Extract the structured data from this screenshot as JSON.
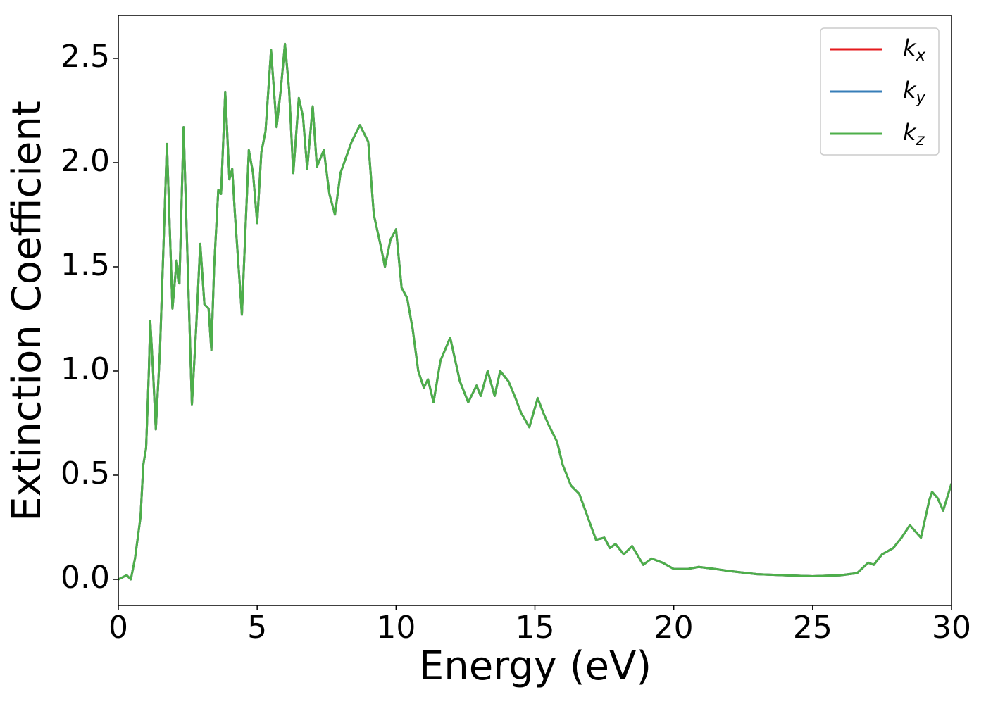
{
  "chart_data": {
    "type": "line",
    "xlabel": "Energy (eV)",
    "ylabel": "Extinction Coefficient",
    "xlim": [
      0,
      30
    ],
    "ylim": [
      -0.125,
      2.706
    ],
    "xticks": [
      0,
      5,
      10,
      15,
      20,
      25,
      30
    ],
    "yticks": [
      {
        "value": 0,
        "label": "0.0"
      },
      0.5,
      {
        "value": 1,
        "label": "1.0"
      },
      1.5,
      {
        "value": 2,
        "label": "2.0"
      },
      2.5
    ],
    "legend": "upper right",
    "grid": false,
    "x": [
      0,
      0.3,
      0.45,
      0.6,
      0.8,
      0.9,
      1.0,
      1.1,
      1.15,
      1.25,
      1.35,
      1.5,
      1.75,
      1.95,
      2.1,
      2.2,
      2.35,
      2.5,
      2.65,
      2.8,
      2.95,
      3.1,
      3.25,
      3.35,
      3.45,
      3.6,
      3.7,
      3.85,
      4.0,
      4.1,
      4.2,
      4.45,
      4.6,
      4.7,
      4.85,
      5.0,
      5.15,
      5.3,
      5.5,
      5.7,
      5.85,
      6.0,
      6.15,
      6.3,
      6.5,
      6.65,
      6.8,
      7.0,
      7.15,
      7.4,
      7.6,
      7.8,
      8.0,
      8.4,
      8.7,
      9.0,
      9.2,
      9.45,
      9.6,
      9.8,
      10.0,
      10.2,
      10.4,
      10.6,
      10.8,
      11.0,
      11.15,
      11.35,
      11.6,
      11.95,
      12.3,
      12.6,
      12.9,
      13.05,
      13.3,
      13.55,
      13.75,
      14.05,
      14.3,
      14.5,
      14.8,
      15.1,
      15.3,
      15.5,
      15.8,
      16.0,
      16.3,
      16.6,
      16.9,
      17.2,
      17.5,
      17.7,
      17.9,
      18.2,
      18.5,
      18.9,
      19.2,
      19.6,
      20.0,
      20.5,
      20.9,
      21.5,
      22.0,
      23.0,
      24.0,
      25.0,
      26.0,
      26.6,
      27.0,
      27.2,
      27.5,
      27.9,
      28.2,
      28.5,
      28.9,
      29.2,
      29.3,
      29.5,
      29.7,
      30.0
    ],
    "series": [
      {
        "name": "kx",
        "color": "#e41a1c",
        "values": [
          0,
          0.02,
          0,
          0.1,
          0.3,
          0.55,
          0.63,
          1.0,
          1.24,
          1.0,
          0.72,
          1.1,
          2.09,
          1.3,
          1.53,
          1.42,
          2.17,
          1.5,
          0.84,
          1.2,
          1.61,
          1.32,
          1.3,
          1.1,
          1.5,
          1.87,
          1.85,
          2.34,
          1.92,
          1.97,
          1.75,
          1.27,
          1.75,
          2.06,
          1.95,
          1.71,
          2.05,
          2.15,
          2.54,
          2.17,
          2.35,
          2.57,
          2.35,
          1.95,
          2.31,
          2.22,
          1.97,
          2.27,
          1.98,
          2.06,
          1.85,
          1.75,
          1.95,
          2.1,
          2.18,
          2.1,
          1.75,
          1.6,
          1.5,
          1.63,
          1.68,
          1.4,
          1.35,
          1.2,
          1.0,
          0.92,
          0.96,
          0.85,
          1.05,
          1.16,
          0.95,
          0.85,
          0.93,
          0.88,
          1.0,
          0.88,
          1.0,
          0.95,
          0.87,
          0.8,
          0.73,
          0.87,
          0.8,
          0.74,
          0.66,
          0.55,
          0.45,
          0.41,
          0.3,
          0.19,
          0.2,
          0.15,
          0.17,
          0.12,
          0.16,
          0.07,
          0.1,
          0.08,
          0.05,
          0.05,
          0.06,
          0.05,
          0.04,
          0.025,
          0.02,
          0.015,
          0.02,
          0.03,
          0.08,
          0.07,
          0.12,
          0.15,
          0.2,
          0.26,
          0.2,
          0.38,
          0.42,
          0.39,
          0.33,
          0.46
        ]
      },
      {
        "name": "ky",
        "color": "#377eb8",
        "values": [
          0,
          0.02,
          0,
          0.1,
          0.3,
          0.55,
          0.63,
          1.0,
          1.24,
          1.0,
          0.72,
          1.1,
          2.09,
          1.3,
          1.53,
          1.42,
          2.17,
          1.5,
          0.84,
          1.2,
          1.61,
          1.32,
          1.3,
          1.1,
          1.5,
          1.87,
          1.85,
          2.34,
          1.92,
          1.97,
          1.75,
          1.27,
          1.75,
          2.06,
          1.95,
          1.71,
          2.05,
          2.15,
          2.54,
          2.17,
          2.35,
          2.57,
          2.35,
          1.95,
          2.31,
          2.22,
          1.97,
          2.27,
          1.98,
          2.06,
          1.85,
          1.75,
          1.95,
          2.1,
          2.18,
          2.1,
          1.75,
          1.6,
          1.5,
          1.63,
          1.68,
          1.4,
          1.35,
          1.2,
          1.0,
          0.92,
          0.96,
          0.85,
          1.05,
          1.16,
          0.95,
          0.85,
          0.93,
          0.88,
          1.0,
          0.88,
          1.0,
          0.95,
          0.87,
          0.8,
          0.73,
          0.87,
          0.8,
          0.74,
          0.66,
          0.55,
          0.45,
          0.41,
          0.3,
          0.19,
          0.2,
          0.15,
          0.17,
          0.12,
          0.16,
          0.07,
          0.1,
          0.08,
          0.05,
          0.05,
          0.06,
          0.05,
          0.04,
          0.025,
          0.02,
          0.015,
          0.02,
          0.03,
          0.08,
          0.07,
          0.12,
          0.15,
          0.2,
          0.26,
          0.2,
          0.38,
          0.42,
          0.39,
          0.33,
          0.46
        ]
      },
      {
        "name": "kz",
        "color": "#4daf4a",
        "values": [
          0,
          0.02,
          0,
          0.1,
          0.3,
          0.55,
          0.63,
          1.0,
          1.24,
          1.0,
          0.72,
          1.1,
          2.09,
          1.3,
          1.53,
          1.42,
          2.17,
          1.5,
          0.84,
          1.2,
          1.61,
          1.32,
          1.3,
          1.1,
          1.5,
          1.87,
          1.85,
          2.34,
          1.92,
          1.97,
          1.75,
          1.27,
          1.75,
          2.06,
          1.95,
          1.71,
          2.05,
          2.15,
          2.54,
          2.17,
          2.35,
          2.57,
          2.35,
          1.95,
          2.31,
          2.22,
          1.97,
          2.27,
          1.98,
          2.06,
          1.85,
          1.75,
          1.95,
          2.1,
          2.18,
          2.1,
          1.75,
          1.6,
          1.5,
          1.63,
          1.68,
          1.4,
          1.35,
          1.2,
          1.0,
          0.92,
          0.96,
          0.85,
          1.05,
          1.16,
          0.95,
          0.85,
          0.93,
          0.88,
          1.0,
          0.88,
          1.0,
          0.95,
          0.87,
          0.8,
          0.73,
          0.87,
          0.8,
          0.74,
          0.66,
          0.55,
          0.45,
          0.41,
          0.3,
          0.19,
          0.2,
          0.15,
          0.17,
          0.12,
          0.16,
          0.07,
          0.1,
          0.08,
          0.05,
          0.05,
          0.06,
          0.05,
          0.04,
          0.025,
          0.02,
          0.015,
          0.02,
          0.03,
          0.08,
          0.07,
          0.12,
          0.15,
          0.2,
          0.26,
          0.2,
          0.38,
          0.42,
          0.39,
          0.33,
          0.46
        ]
      }
    ]
  }
}
